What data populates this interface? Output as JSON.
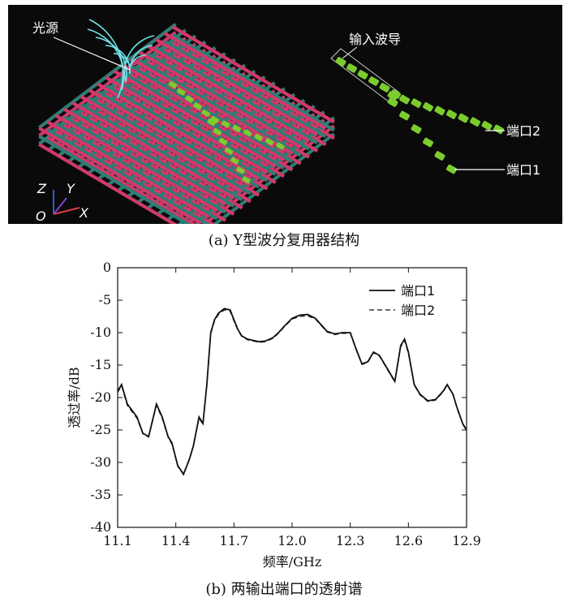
{
  "figure_a": {
    "caption": "(a) Y型波分复用器结构",
    "label_light_source": "光源",
    "label_input_waveguide": "输入波导",
    "label_port1": "端口1",
    "label_port2": "端口2",
    "axis_z": "Z",
    "axis_y": "Y",
    "axis_x": "X",
    "axis_o": "O",
    "colors": {
      "background": "#0a0a0a",
      "rod_teal": "#2f7d74",
      "rod_pink": "#d1386a",
      "dot_green": "#7ccc2e",
      "wave_cyan": "#6fe3e8"
    }
  },
  "figure_b": {
    "caption": "(b) 两输出端口的透射谱"
  },
  "chart_data": {
    "type": "line",
    "xlabel": "频率/GHz",
    "ylabel": "透过率/dB",
    "xlim": [
      11.1,
      12.9
    ],
    "ylim": [
      -40,
      0
    ],
    "xticks": [
      "11.1",
      "11.4",
      "11.7",
      "12.0",
      "12.3",
      "12.6",
      "12.9"
    ],
    "yticks": [
      "0",
      "-5",
      "-10",
      "-15",
      "-20",
      "-25",
      "-30",
      "-35",
      "-40"
    ],
    "legend_position": "top-right",
    "series": [
      {
        "name": "端口1",
        "style": "solid",
        "x": [
          11.1,
          11.12,
          11.15,
          11.2,
          11.23,
          11.26,
          11.3,
          11.33,
          11.36,
          11.38,
          11.41,
          11.44,
          11.47,
          11.49,
          11.52,
          11.54,
          11.56,
          11.58,
          11.6,
          11.62,
          11.65,
          11.68,
          11.7,
          11.72,
          11.74,
          11.77,
          11.8,
          11.83,
          11.86,
          11.9,
          11.93,
          11.96,
          12.0,
          12.04,
          12.08,
          12.12,
          12.15,
          12.18,
          12.22,
          12.26,
          12.3,
          12.33,
          12.36,
          12.39,
          12.42,
          12.45,
          12.48,
          12.51,
          12.53,
          12.56,
          12.58,
          12.6,
          12.63,
          12.66,
          12.7,
          12.74,
          12.78,
          12.8,
          12.83,
          12.85,
          12.88,
          12.9
        ],
        "values": [
          -19,
          -18,
          -21,
          -23,
          -25.5,
          -26,
          -21,
          -23,
          -26,
          -27,
          -30.5,
          -31.8,
          -29.5,
          -27.5,
          -23,
          -24,
          -18,
          -10,
          -8,
          -7,
          -6.3,
          -6.5,
          -8,
          -9.5,
          -10.5,
          -11,
          -11.2,
          -11.4,
          -11.3,
          -10.8,
          -10,
          -9,
          -7.8,
          -7.3,
          -7.2,
          -7.8,
          -8.8,
          -9.8,
          -10.2,
          -10,
          -10,
          -12.5,
          -14.8,
          -14.5,
          -13,
          -13.5,
          -15,
          -16.5,
          -17.5,
          -12,
          -11,
          -13,
          -18,
          -19.5,
          -20.5,
          -20.3,
          -19,
          -18,
          -19.5,
          -21.5,
          -24,
          -25
        ]
      },
      {
        "name": "端口2",
        "style": "dashed",
        "x": [
          11.1,
          11.12,
          11.15,
          11.2,
          11.23,
          11.26,
          11.3,
          11.33,
          11.36,
          11.38,
          11.41,
          11.44,
          11.47,
          11.49,
          11.52,
          11.54,
          11.56,
          11.58,
          11.6,
          11.62,
          11.65,
          11.68,
          11.7,
          11.72,
          11.74,
          11.77,
          11.8,
          11.83,
          11.86,
          11.9,
          11.93,
          11.96,
          12.0,
          12.04,
          12.08,
          12.12,
          12.15,
          12.18,
          12.22,
          12.26,
          12.3,
          12.33,
          12.36,
          12.39,
          12.42,
          12.45,
          12.48,
          12.51,
          12.53,
          12.56,
          12.58,
          12.6,
          12.63,
          12.66,
          12.7,
          12.74,
          12.78,
          12.8,
          12.83,
          12.85,
          12.88,
          12.9
        ],
        "values": [
          -19.2,
          -18.2,
          -21.2,
          -23.2,
          -25.6,
          -26.1,
          -21.2,
          -23.2,
          -26.1,
          -27.2,
          -30.6,
          -31.9,
          -29.6,
          -27.6,
          -23.2,
          -24.1,
          -18.2,
          -10.2,
          -8.2,
          -7.2,
          -6.5,
          -6.7,
          -8.2,
          -9.6,
          -10.6,
          -11.1,
          -11.3,
          -11.5,
          -11.4,
          -10.9,
          -10.1,
          -9.1,
          -7.9,
          -7.5,
          -7.4,
          -7.9,
          -8.9,
          -9.9,
          -10.3,
          -10.1,
          -10.1,
          -12.6,
          -14.9,
          -14.6,
          -13.1,
          -13.6,
          -15.1,
          -16.6,
          -17.6,
          -12.2,
          -11.2,
          -13.2,
          -18.1,
          -19.6,
          -20.6,
          -20.4,
          -19.1,
          -18.1,
          -19.6,
          -21.6,
          -24.1,
          -25.1
        ]
      }
    ]
  }
}
